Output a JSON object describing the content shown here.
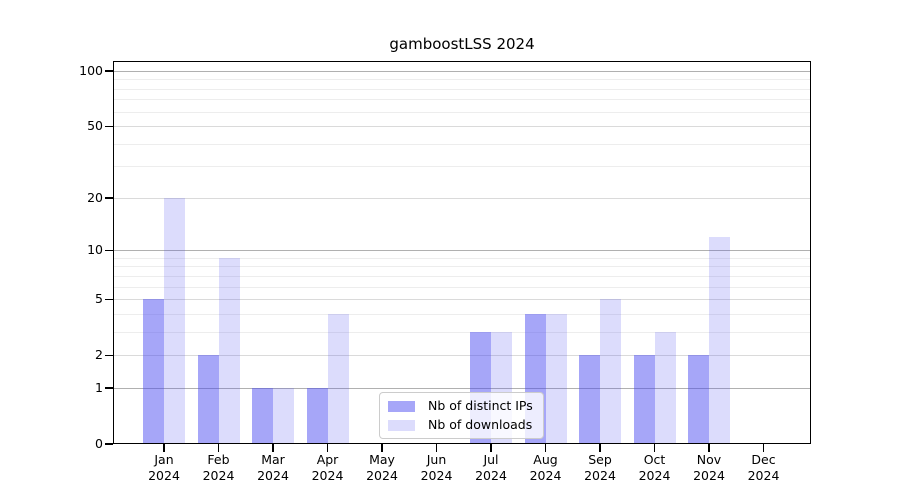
{
  "title": "gamboostLSS 2024",
  "chart_data": {
    "type": "bar",
    "title": "gamboostLSS 2024",
    "categories": [
      "Jan",
      "Feb",
      "Mar",
      "Apr",
      "May",
      "Jun",
      "Jul",
      "Aug",
      "Sep",
      "Oct",
      "Nov",
      "Dec"
    ],
    "category_year": "2024",
    "series": [
      {
        "name": "Nb of distinct IPs",
        "color": "rgba(70,70,240,0.48)",
        "values": [
          5,
          2,
          1,
          1,
          0,
          0,
          3,
          4,
          2,
          2,
          2,
          0
        ]
      },
      {
        "name": "Nb of downloads",
        "color": "rgba(70,70,240,0.19)",
        "values": [
          20,
          9,
          1,
          4,
          0,
          0,
          3,
          4,
          5,
          3,
          12,
          0
        ]
      }
    ],
    "yscale": "log1p",
    "ylim": [
      0,
      110
    ],
    "yticks": [
      0,
      1,
      2,
      5,
      10,
      20,
      50,
      100
    ],
    "grid": {
      "major_values": [
        1,
        10,
        100
      ],
      "mid_values": [
        2,
        5,
        20,
        50
      ],
      "minor_values": [
        3,
        4,
        6,
        7,
        8,
        9,
        30,
        40,
        60,
        70,
        80,
        90
      ],
      "major_color": "#b0b0b0",
      "mid_color": "#dadada",
      "minor_color": "#ededed"
    },
    "legend_position": "lower center"
  }
}
